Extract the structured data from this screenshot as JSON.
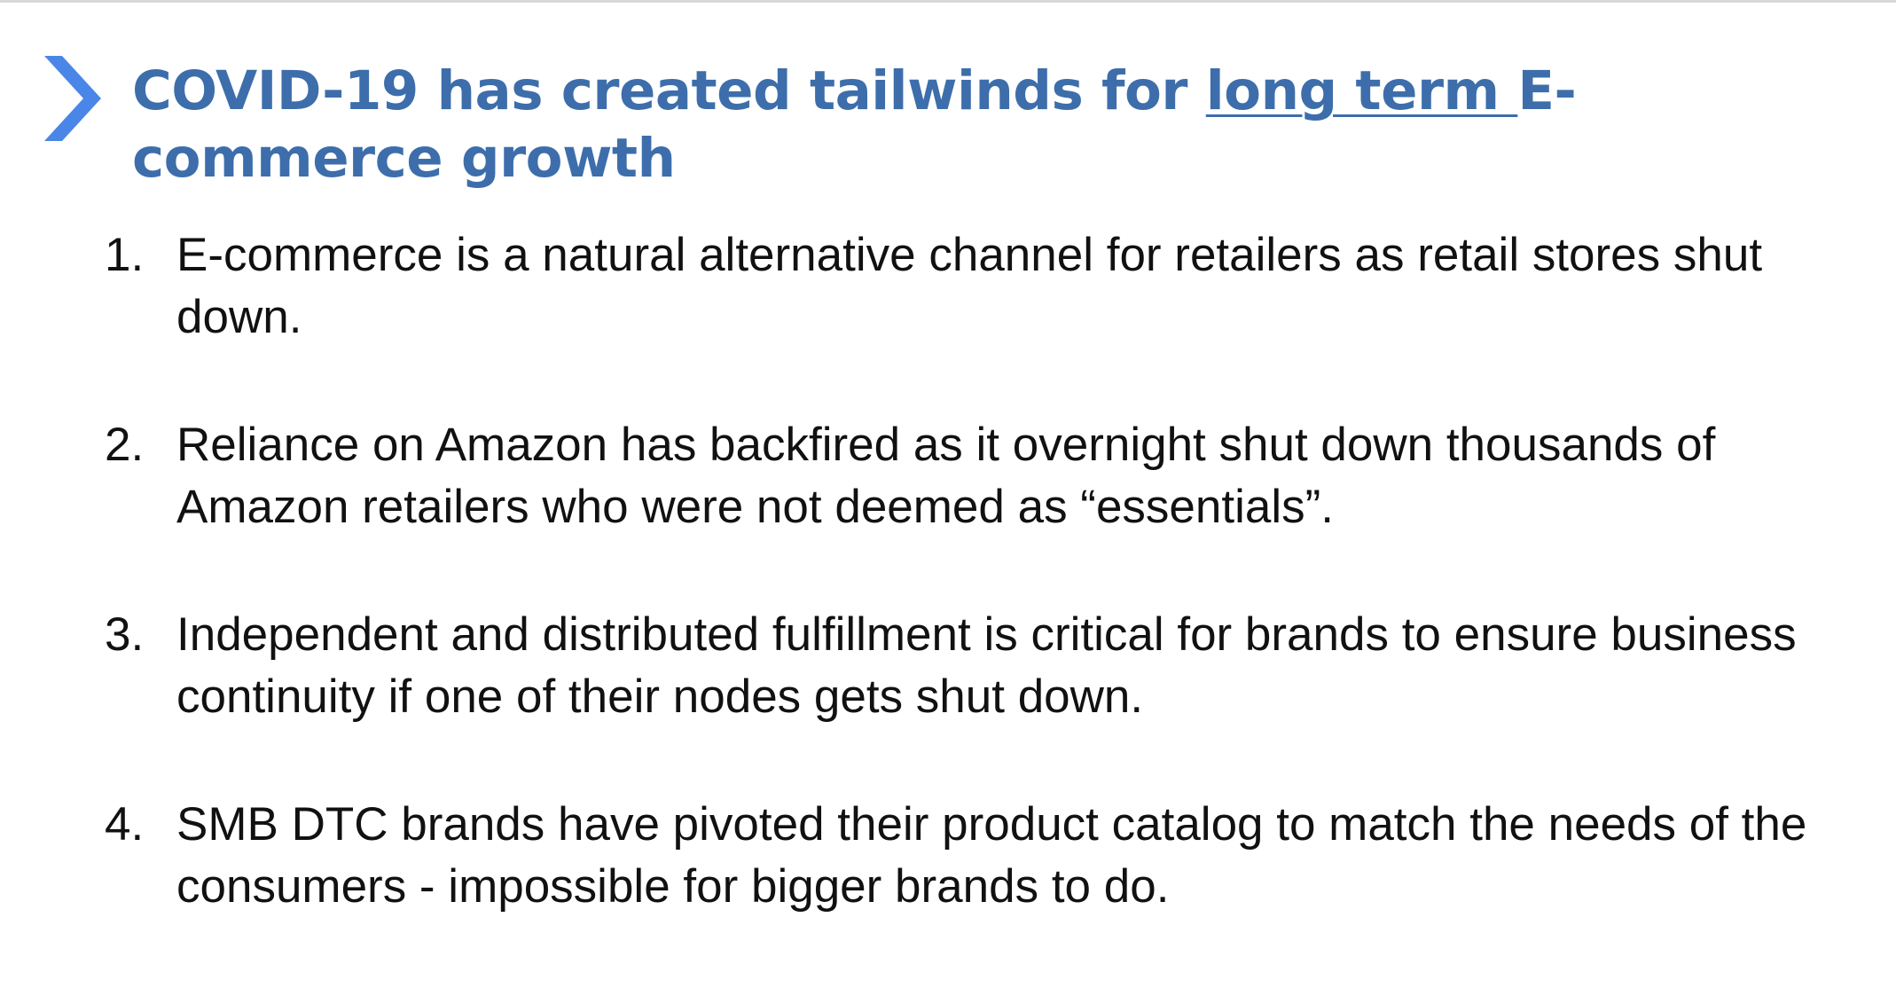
{
  "slide": {
    "title_parts": {
      "before": "COVID-19 has created tailwinds for ",
      "underlined": "long term ",
      "after": "E-commerce growth"
    },
    "accent_color": "#3d6eab",
    "chevron_color": "#4a86e8",
    "chevron_icon": "chevron-right-icon",
    "items": [
      {
        "number": "1.",
        "text": "E-commerce is a natural alternative channel for retailers as retail stores shut down."
      },
      {
        "number": "2.",
        "text": "Reliance on Amazon has backfired as it overnight shut down thousands of Amazon retailers who were not deemed as “essentials”."
      },
      {
        "number": "3.",
        "text": "Independent and distributed fulfillment is critical for brands to ensure business continuity if one of their nodes gets shut down."
      },
      {
        "number": "4.",
        "text": "SMB DTC brands have pivoted their product catalog to match the needs of the consumers - impossible for bigger brands to do."
      }
    ]
  }
}
